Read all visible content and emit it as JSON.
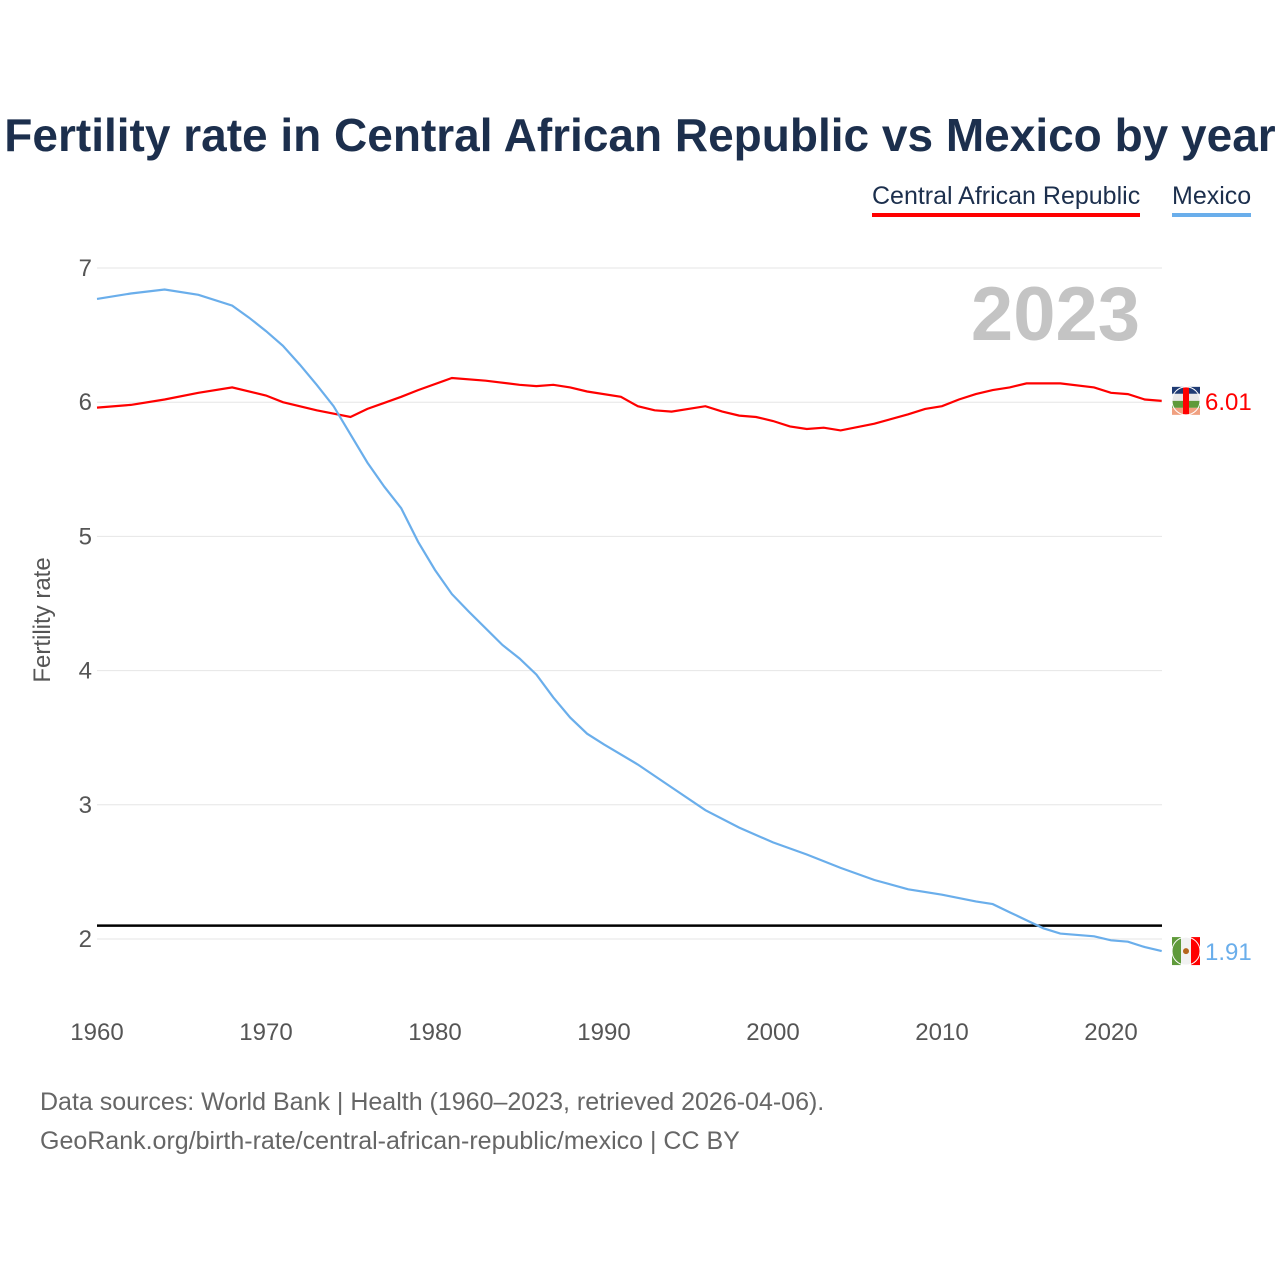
{
  "chart_data": {
    "type": "line",
    "title": "Fertility rate in Central African Republic vs Mexico by year",
    "xlabel": "",
    "ylabel": "Fertility rate",
    "xlim": [
      1960,
      2023
    ],
    "ylim": [
      1.5,
      7.1
    ],
    "xticks": [
      "1960",
      "1970",
      "1980",
      "1990",
      "2000",
      "2010",
      "2020"
    ],
    "yticks": [
      "2",
      "3",
      "4",
      "5",
      "6",
      "7"
    ],
    "year_label": "2023",
    "reference_line": 2.1,
    "series": [
      {
        "name": "Central African Republic",
        "color": "#ff0000",
        "end_label": "6.01",
        "x": [
          1960,
          1962,
          1964,
          1966,
          1968,
          1970,
          1971,
          1973,
          1975,
          1976,
          1978,
          1979,
          1981,
          1983,
          1985,
          1986,
          1987,
          1988,
          1989,
          1991,
          1992,
          1993,
          1994,
          1996,
          1997,
          1998,
          1999,
          2000,
          2001,
          2002,
          2003,
          2004,
          2006,
          2008,
          2009,
          2010,
          2011,
          2012,
          2013,
          2014,
          2015,
          2017,
          2019,
          2020,
          2021,
          2022,
          2023
        ],
        "values": [
          5.96,
          5.98,
          6.02,
          6.07,
          6.11,
          6.05,
          6.0,
          5.94,
          5.89,
          5.95,
          6.04,
          6.09,
          6.18,
          6.16,
          6.13,
          6.12,
          6.13,
          6.11,
          6.08,
          6.04,
          5.97,
          5.94,
          5.93,
          5.97,
          5.93,
          5.9,
          5.89,
          5.86,
          5.82,
          5.8,
          5.81,
          5.79,
          5.84,
          5.91,
          5.95,
          5.97,
          6.02,
          6.06,
          6.09,
          6.11,
          6.14,
          6.14,
          6.11,
          6.07,
          6.06,
          6.02,
          6.01
        ]
      },
      {
        "name": "Mexico",
        "color": "#6aaeeb",
        "end_label": "1.91",
        "x": [
          1960,
          1962,
          1964,
          1966,
          1968,
          1969,
          1970,
          1971,
          1972,
          1973,
          1974,
          1975,
          1976,
          1977,
          1978,
          1979,
          1980,
          1981,
          1982,
          1984,
          1985,
          1986,
          1987,
          1988,
          1989,
          1990,
          1992,
          1994,
          1996,
          1998,
          2000,
          2002,
          2004,
          2006,
          2008,
          2010,
          2012,
          2013,
          2014,
          2015,
          2016,
          2017,
          2019,
          2020,
          2021,
          2022,
          2023
        ],
        "values": [
          6.77,
          6.81,
          6.84,
          6.8,
          6.72,
          6.63,
          6.53,
          6.42,
          6.28,
          6.13,
          5.97,
          5.76,
          5.55,
          5.37,
          5.21,
          4.96,
          4.75,
          4.57,
          4.44,
          4.19,
          4.09,
          3.97,
          3.8,
          3.65,
          3.53,
          3.45,
          3.3,
          3.13,
          2.96,
          2.83,
          2.72,
          2.63,
          2.53,
          2.44,
          2.37,
          2.33,
          2.28,
          2.26,
          2.2,
          2.14,
          2.08,
          2.04,
          2.02,
          1.99,
          1.98,
          1.94,
          1.91
        ]
      }
    ]
  },
  "footer": {
    "line1": "Data sources: World Bank | Health (1960–2023, retrieved 2026-04-06).",
    "line2": "GeoRank.org/birth-rate/central-african-republic/mexico | CC BY"
  }
}
